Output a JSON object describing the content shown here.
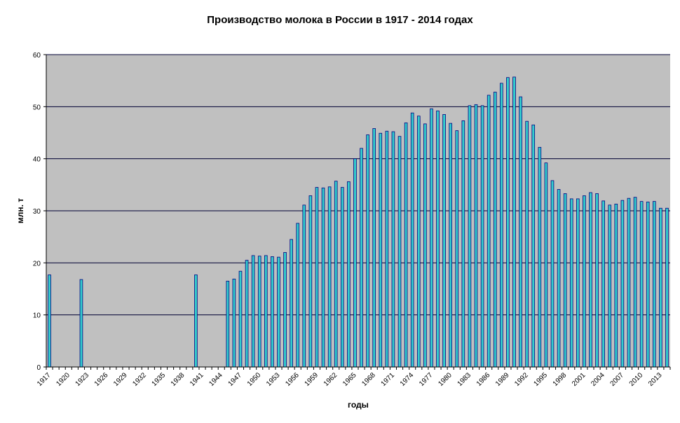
{
  "chart_data": {
    "type": "bar",
    "title": "Производство молока в России в 1917 - 2014 годах",
    "xlabel": "годы",
    "ylabel": "млн. т",
    "ylim": [
      0,
      60
    ],
    "yticks": [
      0,
      10,
      20,
      30,
      40,
      50,
      60
    ],
    "grid": true,
    "x_start": 1917,
    "x_end": 2014,
    "xtick_labels": [
      "1917",
      "1920",
      "1923",
      "1926",
      "1929",
      "1932",
      "1935",
      "1938",
      "1941",
      "1944",
      "1947",
      "1950",
      "1953",
      "1956",
      "1959",
      "1962",
      "1965",
      "1968",
      "1971",
      "1974",
      "1977",
      "1980",
      "1983",
      "1986",
      "1989",
      "1992",
      "1995",
      "1998",
      "2001",
      "2004",
      "2007",
      "2010",
      "2013"
    ],
    "series": [
      {
        "name": "млн. т",
        "color": "#33cccc",
        "years": [
          1917,
          1922,
          1940,
          1945,
          1946,
          1947,
          1948,
          1949,
          1950,
          1951,
          1952,
          1953,
          1954,
          1955,
          1956,
          1957,
          1958,
          1959,
          1960,
          1961,
          1962,
          1963,
          1964,
          1965,
          1966,
          1967,
          1968,
          1969,
          1970,
          1971,
          1972,
          1973,
          1974,
          1975,
          1976,
          1977,
          1978,
          1979,
          1980,
          1981,
          1982,
          1983,
          1984,
          1985,
          1986,
          1987,
          1988,
          1989,
          1990,
          1991,
          1992,
          1993,
          1994,
          1995,
          1996,
          1997,
          1998,
          1999,
          2000,
          2001,
          2002,
          2003,
          2004,
          2005,
          2006,
          2007,
          2008,
          2009,
          2010,
          2011,
          2012,
          2013,
          2014
        ],
        "values": [
          17.7,
          16.8,
          17.7,
          16.5,
          16.9,
          18.4,
          20.5,
          21.4,
          21.3,
          21.4,
          21.2,
          21.1,
          22.0,
          24.5,
          27.6,
          31.1,
          32.9,
          34.5,
          34.4,
          34.6,
          35.7,
          34.5,
          35.6,
          40.0,
          42.0,
          44.6,
          45.8,
          44.9,
          45.3,
          45.2,
          44.3,
          46.9,
          48.8,
          48.2,
          46.7,
          49.6,
          49.2,
          48.5,
          46.8,
          45.4,
          47.3,
          50.2,
          50.4,
          50.2,
          52.2,
          52.8,
          54.5,
          55.6,
          55.7,
          51.9,
          47.2,
          46.5,
          42.2,
          39.2,
          35.8,
          34.1,
          33.3,
          32.3,
          32.3,
          32.9,
          33.5,
          33.3,
          31.9,
          31.1,
          31.3,
          32.0,
          32.4,
          32.6,
          31.8,
          31.7,
          31.8,
          30.5,
          30.5
        ]
      }
    ]
  }
}
